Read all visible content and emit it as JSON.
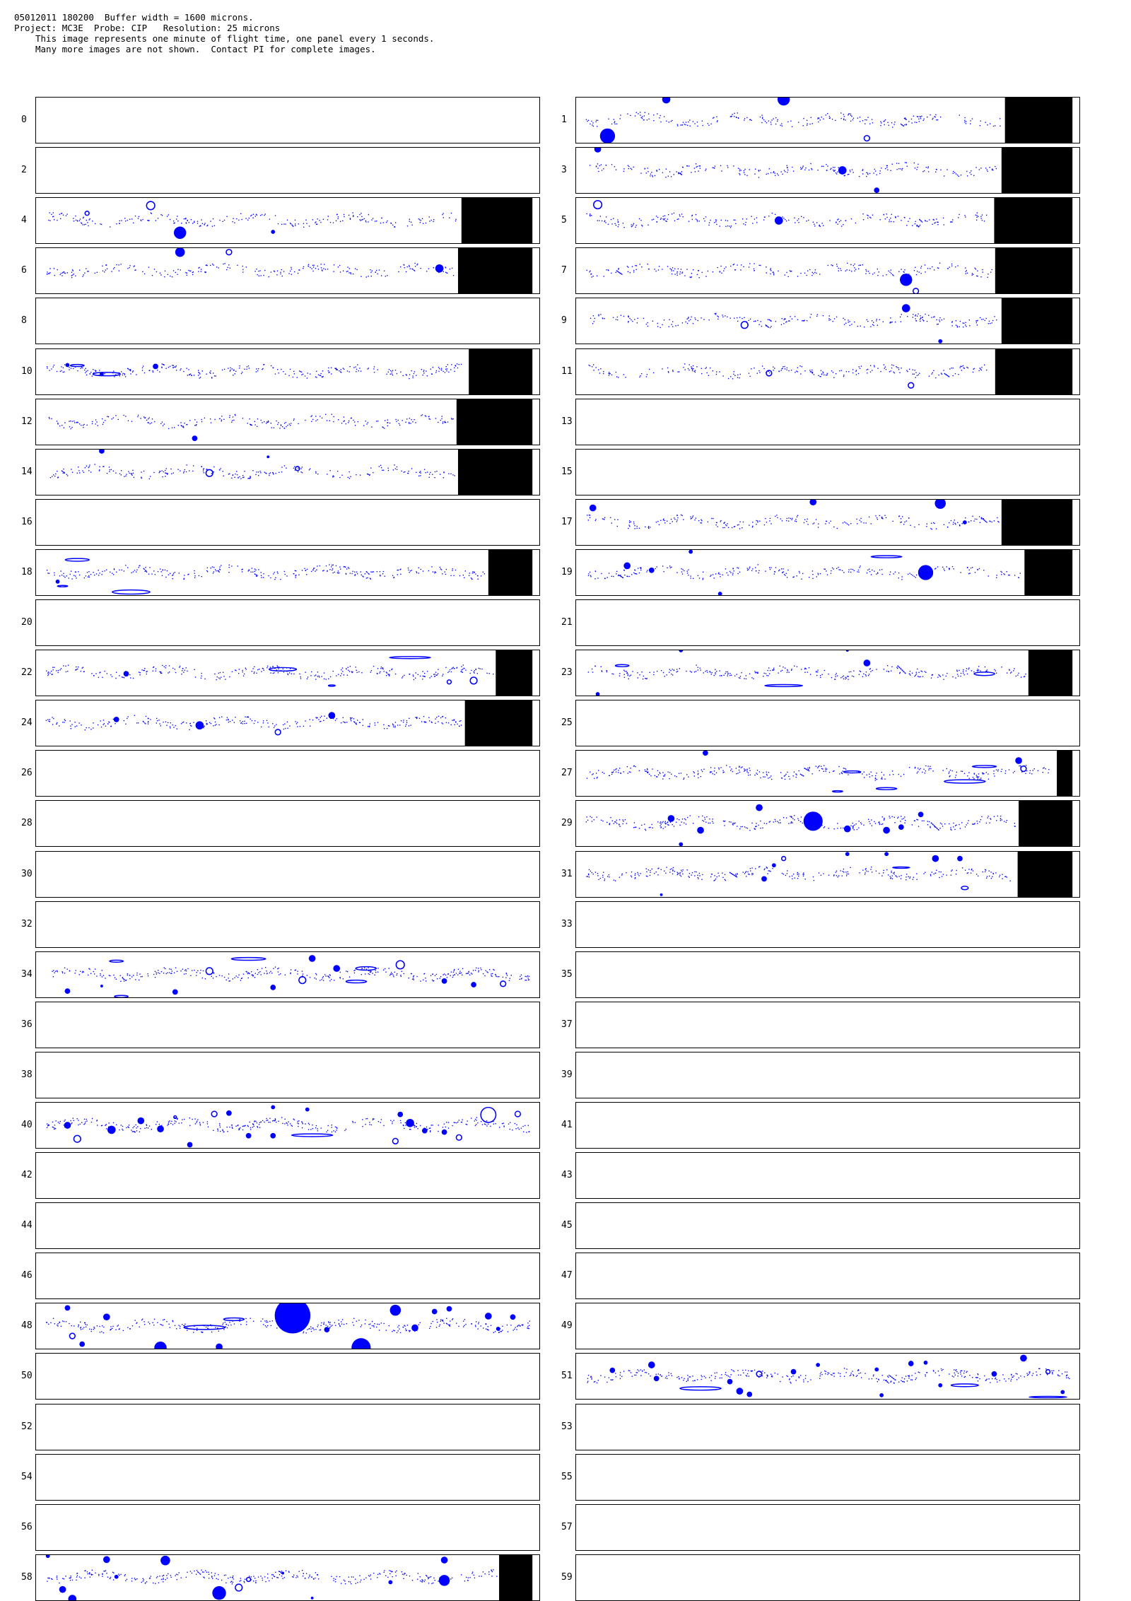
{
  "header": {
    "line1": "05012011 180200  Buffer width = 1600 microns.",
    "line2": "Project: MC3E  Probe: CIP   Resolution: 25 microns",
    "line3": "This image represents one minute of flight time, one panel every 1 seconds.",
    "line4": "Many more images are not shown.  Contact PI for complete images."
  },
  "colors": {
    "particle": "#0000ff",
    "buffer_end": "#000000",
    "border": "#000000"
  },
  "panels": [
    {
      "label": "0",
      "blank": true
    },
    {
      "label": "1",
      "fill": 0.862,
      "density": 1,
      "drops": [
        [
          0.41,
          0.04,
          9,
          0
        ],
        [
          0.05,
          0.85,
          11,
          0
        ],
        [
          0.58,
          0.9,
          4,
          1
        ],
        [
          0.17,
          0.04,
          6,
          0
        ]
      ]
    },
    {
      "label": "2",
      "blank": true
    },
    {
      "label": "3",
      "fill": 0.855,
      "density": 1,
      "drops": [
        [
          0.53,
          0.5,
          6,
          0
        ],
        [
          0.6,
          0.94,
          4,
          0
        ],
        [
          0.03,
          0.03,
          5,
          0
        ]
      ]
    },
    {
      "label": "4",
      "fill": 0.855,
      "density": 1,
      "drops": [
        [
          0.22,
          0.17,
          6,
          1
        ],
        [
          0.28,
          0.77,
          9,
          0
        ],
        [
          0.47,
          0.75,
          3,
          0
        ],
        [
          0.09,
          0.34,
          3,
          1
        ]
      ]
    },
    {
      "label": "5",
      "fill": 0.84,
      "density": 1,
      "drops": [
        [
          0.03,
          0.15,
          6,
          1
        ],
        [
          0.4,
          0.5,
          6,
          0
        ]
      ]
    },
    {
      "label": "6",
      "fill": 0.848,
      "density": 1,
      "drops": [
        [
          0.28,
          0.09,
          7,
          0
        ],
        [
          0.38,
          0.09,
          4,
          1
        ],
        [
          0.81,
          0.45,
          6,
          0
        ]
      ]
    },
    {
      "label": "7",
      "fill": 0.842,
      "density": 1,
      "drops": [
        [
          0.66,
          0.7,
          9,
          0
        ],
        [
          0.68,
          0.95,
          4,
          1
        ]
      ]
    },
    {
      "label": "8",
      "blank": true
    },
    {
      "label": "9",
      "fill": 0.855,
      "density": 1,
      "drops": [
        [
          0.66,
          0.22,
          6,
          0
        ],
        [
          0.33,
          0.59,
          5,
          1
        ],
        [
          0.73,
          0.95,
          3,
          0
        ]
      ]
    },
    {
      "label": "10",
      "fill": 0.87,
      "density": 1.2,
      "drops": [
        [
          0.23,
          0.38,
          4,
          0
        ],
        [
          0.12,
          0.55,
          3,
          0
        ],
        [
          0.05,
          0.35,
          3,
          0
        ]
      ],
      "streaks": [
        [
          0.13,
          0.55,
          40,
          5
        ],
        [
          0.07,
          0.36,
          20,
          3
        ]
      ]
    },
    {
      "label": "11",
      "fill": 0.842,
      "density": 1,
      "drops": [
        [
          0.38,
          0.53,
          4,
          1
        ],
        [
          0.67,
          0.8,
          4,
          1
        ]
      ]
    },
    {
      "label": "12",
      "fill": 0.845,
      "density": 1,
      "drops": [
        [
          0.31,
          0.86,
          4,
          0
        ]
      ]
    },
    {
      "label": "13",
      "blank": true
    },
    {
      "label": "14",
      "fill": 0.848,
      "density": 1,
      "drops": [
        [
          0.12,
          0.03,
          4,
          0
        ],
        [
          0.34,
          0.52,
          5,
          1
        ],
        [
          0.52,
          0.42,
          3,
          1
        ],
        [
          0.46,
          0.16,
          2,
          0
        ]
      ]
    },
    {
      "label": "15",
      "blank": true
    },
    {
      "label": "16",
      "blank": true
    },
    {
      "label": "17",
      "fill": 0.855,
      "density": 1,
      "drops": [
        [
          0.02,
          0.18,
          5,
          0
        ],
        [
          0.47,
          0.05,
          5,
          0
        ],
        [
          0.73,
          0.08,
          8,
          0
        ],
        [
          0.78,
          0.5,
          3,
          0
        ]
      ]
    },
    {
      "label": "18",
      "fill": 0.91,
      "density": 1.2,
      "drops": [
        [
          0.03,
          0.7,
          3,
          0
        ]
      ],
      "streaks": [
        [
          0.18,
          0.93,
          55,
          6
        ],
        [
          0.07,
          0.22,
          35,
          4
        ],
        [
          0.04,
          0.8,
          15,
          2
        ]
      ]
    },
    {
      "label": "19",
      "fill": 0.902,
      "density": 1,
      "drops": [
        [
          0.09,
          0.35,
          5,
          0
        ],
        [
          0.14,
          0.45,
          4,
          0
        ],
        [
          0.22,
          0.04,
          3,
          0
        ],
        [
          0.7,
          0.5,
          11,
          0
        ],
        [
          0.28,
          0.97,
          3,
          0
        ]
      ],
      "streaks": [
        [
          0.62,
          0.15,
          45,
          3
        ]
      ]
    },
    {
      "label": "20",
      "blank": true
    },
    {
      "label": "21",
      "blank": true
    },
    {
      "label": "22",
      "fill": 0.925,
      "density": 1.2,
      "drops": [
        [
          0.17,
          0.52,
          4,
          0
        ],
        [
          0.83,
          0.7,
          3,
          1
        ],
        [
          0.88,
          0.67,
          5,
          1
        ]
      ],
      "streaks": [
        [
          0.49,
          0.42,
          40,
          5
        ],
        [
          0.75,
          0.16,
          60,
          3
        ],
        [
          0.59,
          0.78,
          10,
          2
        ]
      ]
    },
    {
      "label": "23",
      "fill": 0.91,
      "density": 1.2,
      "drops": [
        [
          0.58,
          0.28,
          5,
          0
        ],
        [
          0.03,
          0.97,
          3,
          0
        ],
        [
          0.2,
          0.0,
          3,
          0
        ],
        [
          0.54,
          0.0,
          2,
          0
        ]
      ],
      "streaks": [
        [
          0.08,
          0.34,
          20,
          3
        ],
        [
          0.41,
          0.78,
          55,
          3
        ],
        [
          0.82,
          0.52,
          30,
          5
        ]
      ]
    },
    {
      "label": "24",
      "fill": 0.862,
      "density": 1.2,
      "drops": [
        [
          0.32,
          0.55,
          6,
          0
        ],
        [
          0.59,
          0.33,
          5,
          0
        ],
        [
          0.48,
          0.7,
          4,
          1
        ],
        [
          0.15,
          0.42,
          4,
          0
        ]
      ]
    },
    {
      "label": "25",
      "blank": true
    },
    {
      "label": "26",
      "blank": true
    },
    {
      "label": "27",
      "fill": 0.968,
      "density": 1.2,
      "drops": [
        [
          0.25,
          0.05,
          4,
          0
        ],
        [
          0.89,
          0.22,
          5,
          0
        ],
        [
          0.9,
          0.4,
          4,
          1
        ]
      ],
      "streaks": [
        [
          0.78,
          0.68,
          60,
          5
        ],
        [
          0.62,
          0.84,
          30,
          3
        ],
        [
          0.82,
          0.35,
          35,
          3
        ],
        [
          0.55,
          0.47,
          25,
          3
        ],
        [
          0.52,
          0.9,
          15,
          2
        ]
      ]
    },
    {
      "label": "28",
      "blank": true
    },
    {
      "label": "29",
      "fill": 0.89,
      "density": 1.2,
      "drops": [
        [
          0.47,
          0.45,
          14,
          0
        ],
        [
          0.36,
          0.15,
          5,
          0
        ],
        [
          0.18,
          0.39,
          5,
          0
        ],
        [
          0.24,
          0.65,
          5,
          0
        ],
        [
          0.54,
          0.62,
          5,
          0
        ],
        [
          0.62,
          0.65,
          5,
          0
        ],
        [
          0.65,
          0.58,
          4,
          0
        ],
        [
          0.69,
          0.3,
          4,
          0
        ],
        [
          0.98,
          0.55,
          6,
          0
        ],
        [
          0.2,
          0.96,
          3,
          0
        ]
      ]
    },
    {
      "label": "30",
      "blank": true
    },
    {
      "label": "31",
      "fill": 0.888,
      "density": 1.2,
      "drops": [
        [
          0.37,
          0.6,
          4,
          0
        ],
        [
          0.41,
          0.15,
          3,
          1
        ],
        [
          0.54,
          0.05,
          3,
          0
        ],
        [
          0.62,
          0.05,
          3,
          0
        ],
        [
          0.72,
          0.15,
          5,
          0
        ],
        [
          0.77,
          0.15,
          4,
          0
        ],
        [
          0.39,
          0.3,
          3,
          0
        ],
        [
          0.16,
          0.95,
          2,
          0
        ]
      ],
      "streaks": [
        [
          0.65,
          0.35,
          25,
          2
        ],
        [
          0.78,
          0.8,
          10,
          5
        ]
      ]
    },
    {
      "label": "32",
      "blank": true
    },
    {
      "label": "33",
      "blank": true
    },
    {
      "label": "34",
      "fill": 0.0,
      "density": 1.3,
      "drops": [
        [
          0.55,
          0.14,
          5,
          0
        ],
        [
          0.34,
          0.42,
          5,
          1
        ],
        [
          0.6,
          0.36,
          5,
          0
        ],
        [
          0.73,
          0.28,
          6,
          1
        ],
        [
          0.53,
          0.62,
          5,
          1
        ],
        [
          0.47,
          0.78,
          4,
          0
        ],
        [
          0.05,
          0.86,
          4,
          0
        ],
        [
          0.27,
          0.88,
          4,
          0
        ],
        [
          0.82,
          0.64,
          4,
          0
        ],
        [
          0.88,
          0.72,
          4,
          0
        ],
        [
          0.94,
          0.7,
          4,
          1
        ],
        [
          0.12,
          0.75,
          2,
          0
        ]
      ],
      "streaks": [
        [
          0.42,
          0.15,
          50,
          4
        ],
        [
          0.66,
          0.36,
          30,
          5
        ],
        [
          0.64,
          0.65,
          30,
          4
        ],
        [
          0.15,
          0.2,
          20,
          3
        ],
        [
          0.16,
          0.98,
          20,
          3
        ]
      ]
    },
    {
      "label": "35",
      "blank": true
    },
    {
      "label": "36",
      "blank": true
    },
    {
      "label": "37",
      "blank": true
    },
    {
      "label": "38",
      "blank": true
    },
    {
      "label": "39",
      "blank": true
    },
    {
      "label": "40",
      "fill": 0.0,
      "density": 1.3,
      "drops": [
        [
          0.91,
          0.27,
          11,
          1
        ],
        [
          0.05,
          0.5,
          5,
          0
        ],
        [
          0.07,
          0.8,
          5,
          1
        ],
        [
          0.14,
          0.6,
          6,
          0
        ],
        [
          0.2,
          0.4,
          5,
          0
        ],
        [
          0.24,
          0.58,
          5,
          0
        ],
        [
          0.35,
          0.25,
          4,
          1
        ],
        [
          0.38,
          0.23,
          4,
          0
        ],
        [
          0.47,
          0.1,
          3,
          0
        ],
        [
          0.3,
          0.93,
          4,
          0
        ],
        [
          0.42,
          0.73,
          4,
          0
        ],
        [
          0.47,
          0.73,
          4,
          0
        ],
        [
          0.73,
          0.26,
          4,
          0
        ],
        [
          0.75,
          0.45,
          6,
          0
        ],
        [
          0.78,
          0.62,
          4,
          0
        ],
        [
          0.82,
          0.65,
          4,
          0
        ],
        [
          0.72,
          0.85,
          4,
          1
        ],
        [
          0.85,
          0.77,
          4,
          1
        ],
        [
          0.54,
          0.15,
          3,
          0
        ],
        [
          0.27,
          0.32,
          2,
          1
        ]
      ],
      "streaks": [
        [
          0.55,
          0.72,
          60,
          4
        ],
        [
          0.97,
          0.25,
          8,
          8
        ]
      ]
    },
    {
      "label": "41",
      "blank": true
    },
    {
      "label": "42",
      "blank": true
    },
    {
      "label": "43",
      "blank": true
    },
    {
      "label": "44",
      "blank": true
    },
    {
      "label": "45",
      "blank": true
    },
    {
      "label": "46",
      "blank": true
    },
    {
      "label": "47",
      "blank": true
    },
    {
      "label": "48",
      "fill": 0.0,
      "density": 1.3,
      "drops": [
        [
          0.51,
          0.27,
          26,
          0
        ],
        [
          0.65,
          0.98,
          14,
          0
        ],
        [
          0.24,
          0.98,
          9,
          0
        ],
        [
          0.13,
          0.3,
          5,
          0
        ],
        [
          0.05,
          0.1,
          4,
          0
        ],
        [
          0.06,
          0.72,
          4,
          1
        ],
        [
          0.08,
          0.9,
          4,
          0
        ],
        [
          0.36,
          0.96,
          5,
          0
        ],
        [
          0.58,
          0.58,
          4,
          0
        ],
        [
          0.72,
          0.15,
          8,
          0
        ],
        [
          0.76,
          0.54,
          5,
          0
        ],
        [
          0.8,
          0.18,
          4,
          0
        ],
        [
          0.83,
          0.12,
          4,
          0
        ],
        [
          0.91,
          0.28,
          5,
          0
        ],
        [
          0.96,
          0.3,
          4,
          0
        ],
        [
          0.93,
          0.56,
          3,
          0
        ]
      ],
      "streaks": [
        [
          0.33,
          0.53,
          60,
          6
        ],
        [
          0.39,
          0.35,
          30,
          4
        ]
      ]
    },
    {
      "label": "49",
      "blank": true
    },
    {
      "label": "50",
      "blank": true
    },
    {
      "label": "51",
      "fill": 0.0,
      "density": 1.3,
      "drops": [
        [
          0.06,
          0.37,
          4,
          0
        ],
        [
          0.14,
          0.25,
          5,
          0
        ],
        [
          0.15,
          0.55,
          4,
          0
        ],
        [
          0.3,
          0.62,
          4,
          0
        ],
        [
          0.32,
          0.83,
          5,
          0
        ],
        [
          0.34,
          0.9,
          4,
          0
        ],
        [
          0.36,
          0.45,
          4,
          1
        ],
        [
          0.43,
          0.4,
          4,
          0
        ],
        [
          0.48,
          0.25,
          3,
          0
        ],
        [
          0.6,
          0.35,
          3,
          0
        ],
        [
          0.67,
          0.22,
          4,
          0
        ],
        [
          0.7,
          0.2,
          3,
          0
        ],
        [
          0.73,
          0.7,
          3,
          0
        ],
        [
          0.84,
          0.45,
          4,
          0
        ],
        [
          0.9,
          0.1,
          5,
          0
        ],
        [
          0.95,
          0.4,
          3,
          1
        ],
        [
          0.98,
          0.85,
          3,
          0
        ],
        [
          0.61,
          0.92,
          3,
          0
        ]
      ],
      "streaks": [
        [
          0.24,
          0.77,
          60,
          5
        ],
        [
          0.78,
          0.7,
          40,
          4
        ],
        [
          0.95,
          0.96,
          55,
          2
        ]
      ]
    },
    {
      "label": "52",
      "blank": true
    },
    {
      "label": "53",
      "blank": true
    },
    {
      "label": "54",
      "blank": true
    },
    {
      "label": "55",
      "blank": true
    },
    {
      "label": "56",
      "blank": true
    },
    {
      "label": "57",
      "blank": true
    },
    {
      "label": "58",
      "fill": 0.932,
      "density": 1.3,
      "drops": [
        [
          0.04,
          0.76,
          5,
          0
        ],
        [
          0.06,
          0.97,
          6,
          0
        ],
        [
          0.13,
          0.1,
          5,
          0
        ],
        [
          0.25,
          0.12,
          7,
          0
        ],
        [
          0.36,
          0.84,
          10,
          0
        ],
        [
          0.4,
          0.72,
          5,
          1
        ],
        [
          0.82,
          0.11,
          5,
          0
        ],
        [
          0.82,
          0.56,
          8,
          0
        ],
        [
          0.15,
          0.48,
          3,
          0
        ],
        [
          0.42,
          0.54,
          3,
          1
        ],
        [
          0.49,
          0.4,
          2,
          0
        ],
        [
          0.71,
          0.6,
          3,
          0
        ],
        [
          0.01,
          0.02,
          3,
          0
        ],
        [
          0.55,
          0.95,
          2,
          0
        ]
      ]
    },
    {
      "label": "59",
      "blank": true
    }
  ]
}
